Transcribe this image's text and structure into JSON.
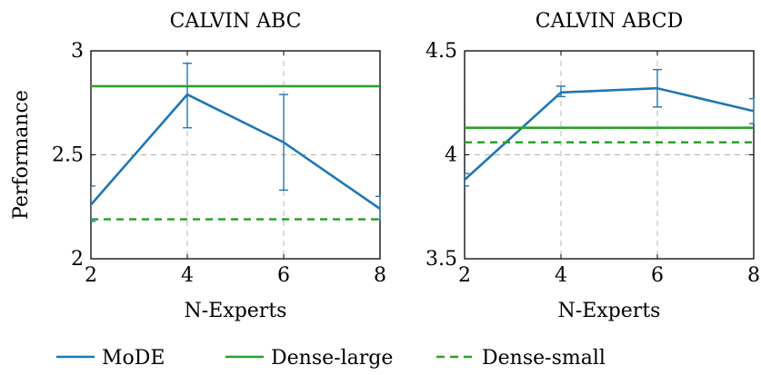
{
  "colors": {
    "mode": "#1f77b4",
    "dense_large": "#2ca02c",
    "dense_small": "#2ca02c",
    "grid": "#b0b0b0",
    "axis": "#000000"
  },
  "legend": {
    "placement": "bottom-center",
    "entries": [
      {
        "label": "MoDE",
        "style": "solid",
        "color": "#1f77b4"
      },
      {
        "label": "Dense-large",
        "style": "solid",
        "color": "#2ca02c"
      },
      {
        "label": "Dense-small",
        "style": "dashed",
        "color": "#2ca02c"
      }
    ]
  },
  "chart_data": [
    {
      "type": "line",
      "title": "CALVIN ABC",
      "xlabel": "N-Experts",
      "ylabel": "Performance",
      "xlim": [
        2,
        8
      ],
      "ylim": [
        2,
        3
      ],
      "xticks": [
        2,
        4,
        6,
        8
      ],
      "yticks": [
        2,
        2.5,
        3
      ],
      "ytick_labels": [
        "2",
        "2.5",
        "3"
      ],
      "grid": true,
      "x": [
        2,
        4,
        6,
        8
      ],
      "series": [
        {
          "name": "MoDE",
          "style": "solid",
          "values": [
            2.26,
            2.79,
            2.56,
            2.24
          ],
          "err_low": [
            2.18,
            2.63,
            2.33,
            2.19
          ],
          "err_high": [
            2.35,
            2.94,
            2.79,
            2.3
          ]
        },
        {
          "name": "Dense-large",
          "style": "solid",
          "constant": 2.83
        },
        {
          "name": "Dense-small",
          "style": "dashed",
          "constant": 2.19
        }
      ]
    },
    {
      "type": "line",
      "title": "CALVIN ABCD",
      "xlabel": "N-Experts",
      "ylabel": "",
      "xlim": [
        2,
        8
      ],
      "ylim": [
        3.5,
        4.5
      ],
      "xticks": [
        2,
        4,
        6,
        8
      ],
      "yticks": [
        3.5,
        4,
        4.5
      ],
      "ytick_labels": [
        "3.5",
        "4",
        "4.5"
      ],
      "grid": true,
      "x": [
        2,
        4,
        6,
        8
      ],
      "series": [
        {
          "name": "MoDE",
          "style": "solid",
          "values": [
            3.88,
            4.3,
            4.32,
            4.21
          ],
          "err_low": [
            3.85,
            4.28,
            4.23,
            4.15
          ],
          "err_high": [
            3.91,
            4.33,
            4.41,
            4.27
          ]
        },
        {
          "name": "Dense-large",
          "style": "solid",
          "constant": 4.13
        },
        {
          "name": "Dense-small",
          "style": "dashed",
          "constant": 4.06
        }
      ]
    }
  ]
}
